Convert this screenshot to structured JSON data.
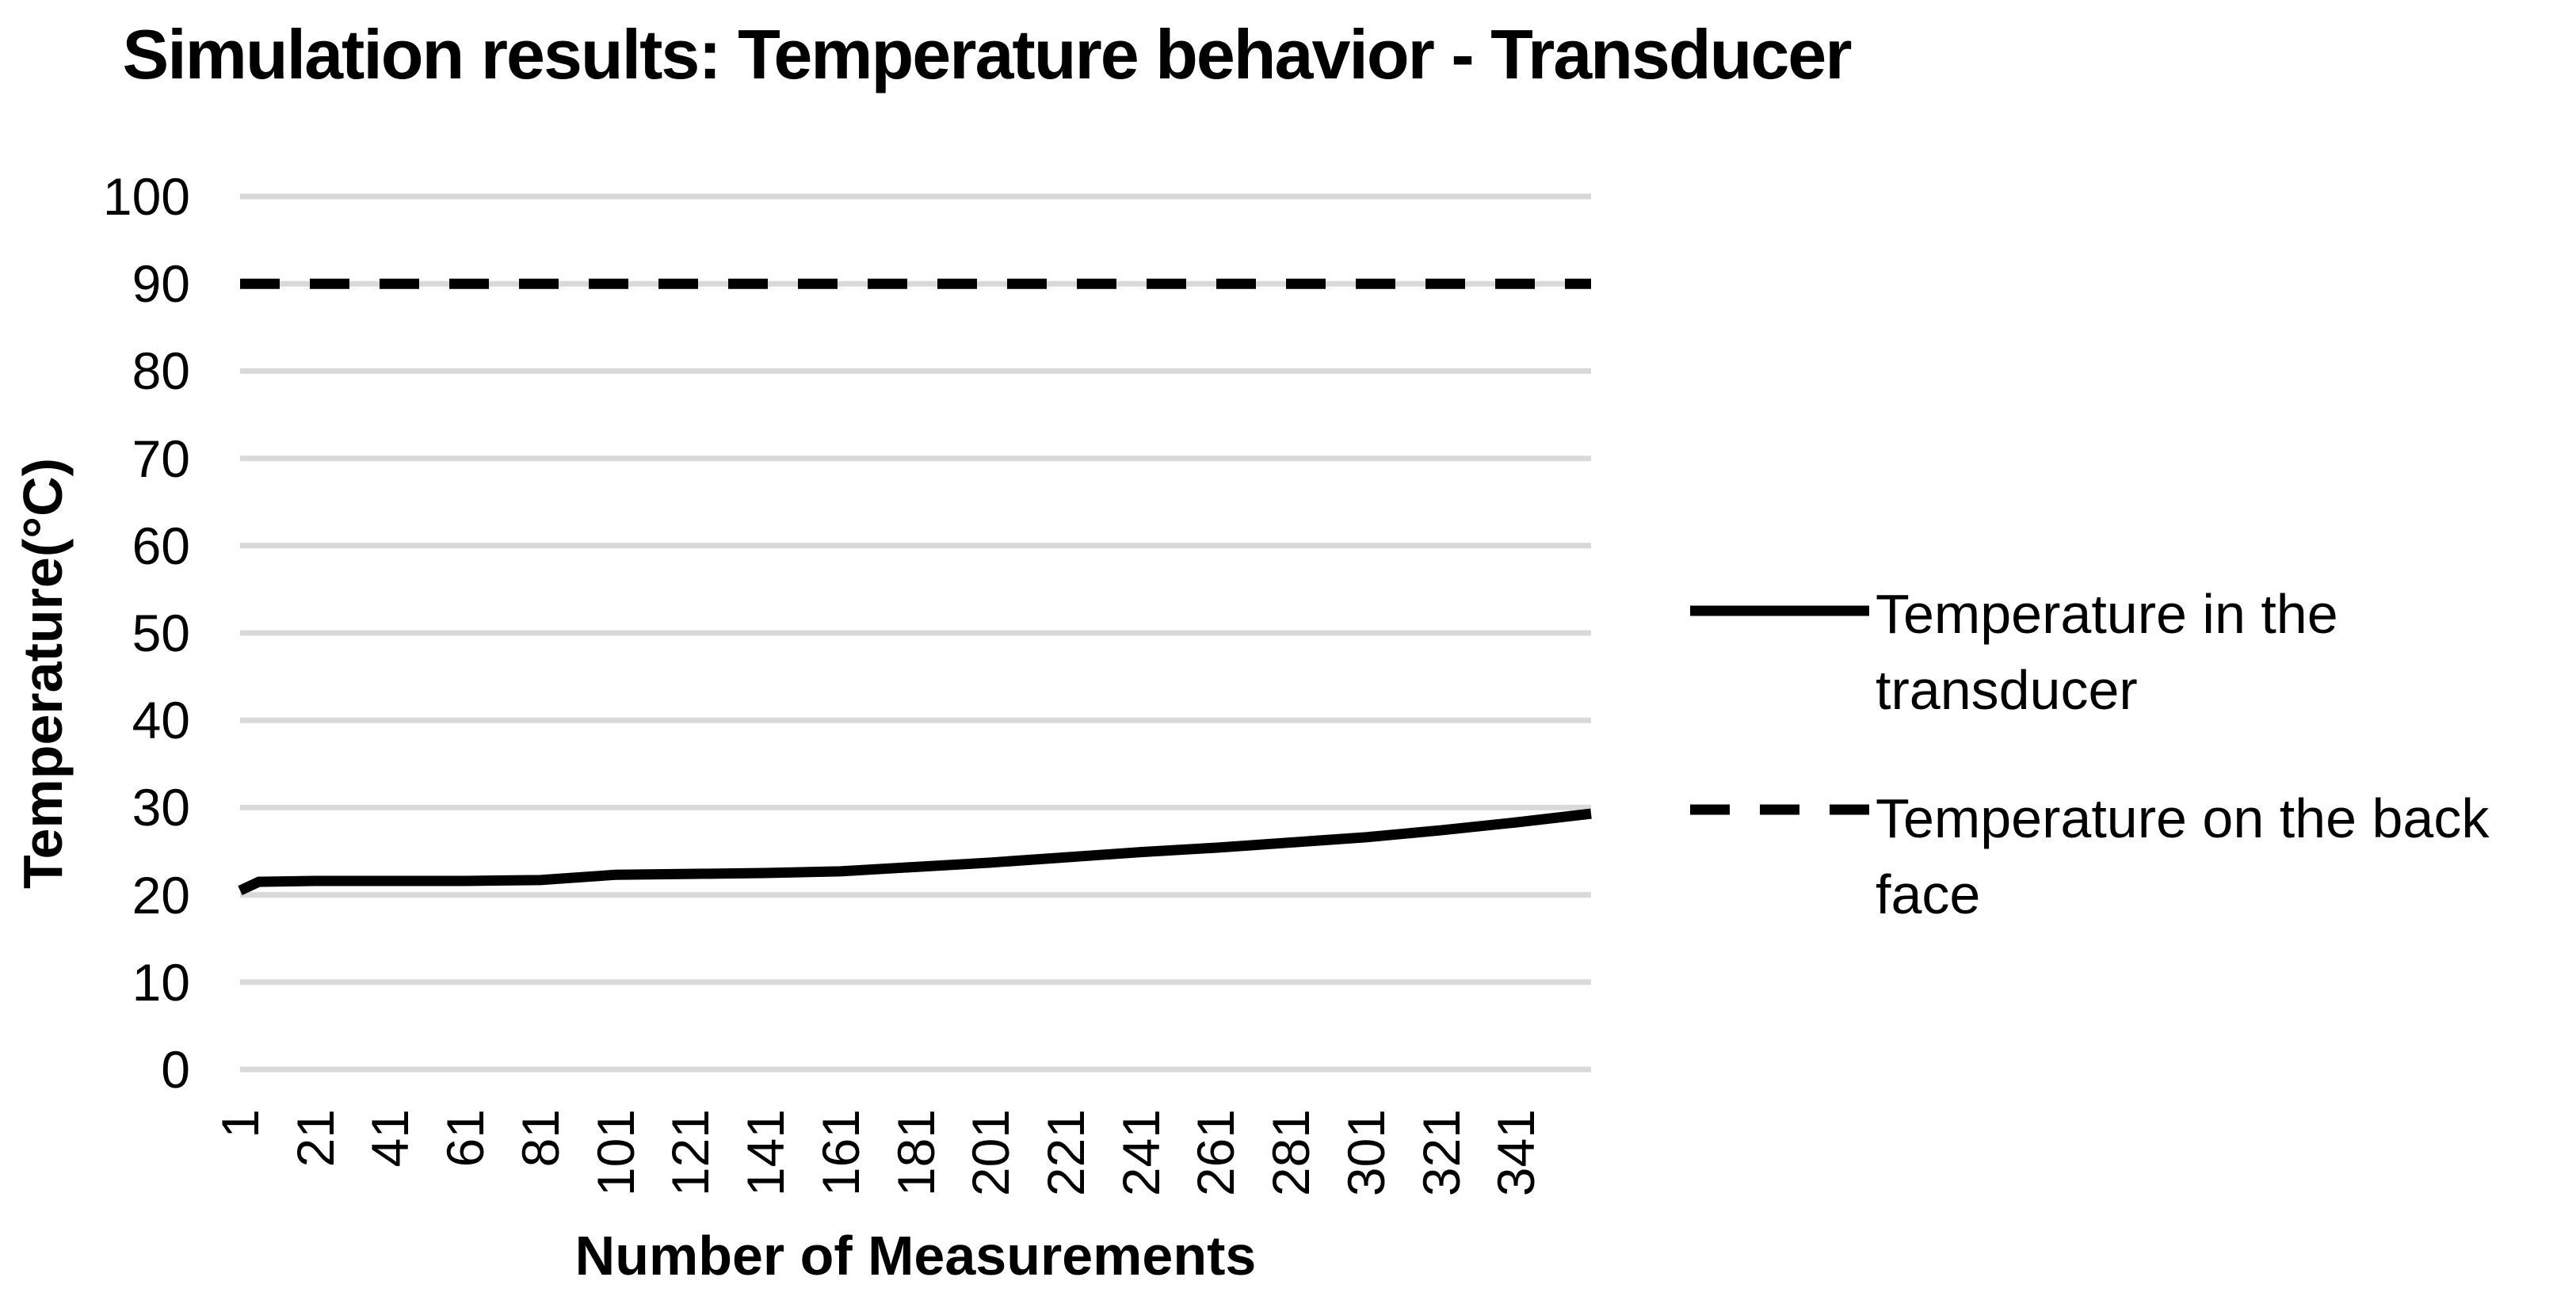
{
  "title": "Simulation results: Temperature behavior - Transducer",
  "y_axis": {
    "label": "Temperature(°C)",
    "ticks": [
      "100",
      "90",
      "80",
      "70",
      "60",
      "50",
      "40",
      "30",
      "20",
      "10",
      "0"
    ]
  },
  "x_axis": {
    "label": "Number of Measurements",
    "ticks": [
      "1",
      "21",
      "41",
      "61",
      "81",
      "101",
      "121",
      "141",
      "161",
      "181",
      "201",
      "221",
      "241",
      "261",
      "281",
      "301",
      "321",
      "341"
    ]
  },
  "legend": {
    "entries": [
      {
        "name": "Temperature in the transducer",
        "line1": "Temperature in the",
        "line2": "transducer",
        "style": "solid"
      },
      {
        "name": "Temperature on the back face",
        "line1": "Temperature on the back",
        "line2": "face",
        "style": "dashed"
      }
    ]
  },
  "colors": {
    "series": "#000000",
    "gridline": "#d9d9d9",
    "text": "#000000",
    "background": "#ffffff"
  },
  "chart_data": {
    "type": "line",
    "title": "Simulation results: Temperature behavior - Transducer",
    "xlabel": "Number of Measurements",
    "ylabel": "Temperature(°C)",
    "ylim": [
      0,
      100
    ],
    "xlim": [
      1,
      361
    ],
    "x_tick_values": [
      1,
      21,
      41,
      61,
      81,
      101,
      121,
      141,
      161,
      181,
      201,
      221,
      241,
      261,
      281,
      301,
      321,
      341
    ],
    "grid": true,
    "gridline_step": 10,
    "legend_position": "right",
    "series": [
      {
        "name": "Temperature in the transducer",
        "style": "solid",
        "x": [
          1,
          6,
          21,
          41,
          61,
          81,
          101,
          121,
          141,
          161,
          181,
          201,
          221,
          241,
          261,
          281,
          301,
          321,
          341,
          361
        ],
        "y": [
          20.5,
          21.5,
          21.6,
          21.6,
          21.6,
          21.7,
          22.3,
          22.4,
          22.5,
          22.7,
          23.2,
          23.7,
          24.3,
          24.9,
          25.4,
          26.0,
          26.6,
          27.4,
          28.3,
          29.3
        ]
      },
      {
        "name": "Temperature on the back face",
        "style": "dashed",
        "x": [
          1,
          361
        ],
        "y": [
          90,
          90
        ]
      }
    ]
  }
}
